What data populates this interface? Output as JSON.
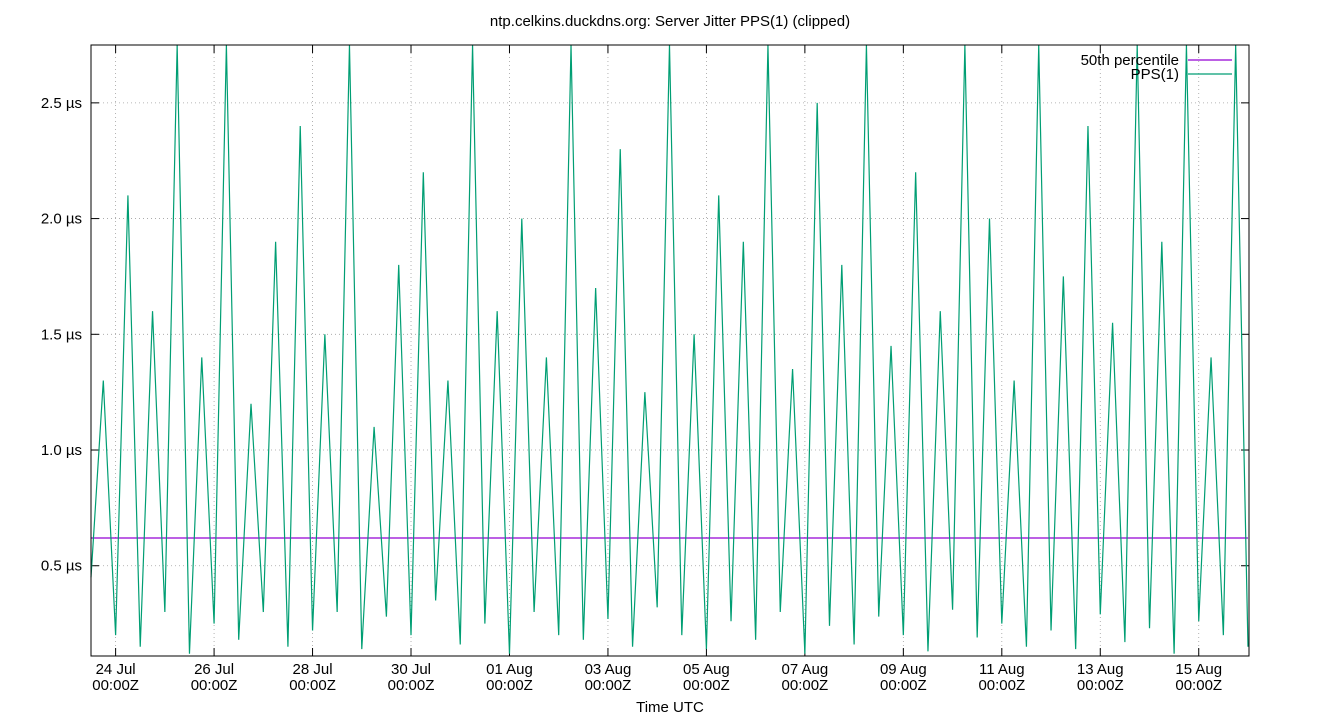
{
  "chart_data": {
    "type": "line",
    "title": "ntp.celkins.duckdns.org: Server Jitter PPS(1) (clipped)",
    "x_label": "Time UTC",
    "grid": true,
    "legend": "top-right",
    "xlim": [
      "23 Jul 12:00Z",
      "16 Aug 00:30Z"
    ],
    "xticks": [
      {
        "value": "24 Jul 00:00Z",
        "label": "24 Jul\n00:00Z"
      },
      {
        "value": "26 Jul 00:00Z",
        "label": "26 Jul\n00:00Z"
      },
      {
        "value": "28 Jul 00:00Z",
        "label": "28 Jul\n00:00Z"
      },
      {
        "value": "30 Jul 00:00Z",
        "label": "30 Jul\n00:00Z"
      },
      {
        "value": "01 Aug 00:00Z",
        "label": "01 Aug\n00:00Z"
      },
      {
        "value": "03 Aug 00:00Z",
        "label": "03 Aug\n00:00Z"
      },
      {
        "value": "05 Aug 00:00Z",
        "label": "05 Aug\n00:00Z"
      },
      {
        "value": "07 Aug 00:00Z",
        "label": "07 Aug\n00:00Z"
      },
      {
        "value": "09 Aug 00:00Z",
        "label": "09 Aug\n00:00Z"
      },
      {
        "value": "11 Aug 00:00Z",
        "label": "11 Aug\n00:00Z"
      },
      {
        "value": "13 Aug 00:00Z",
        "label": "13 Aug\n00:00Z"
      },
      {
        "value": "15 Aug 00:00Z",
        "label": "15 Aug\n00:00Z"
      }
    ],
    "ylim": [
      0.11,
      2.75
    ],
    "yticks": [
      {
        "value": 0.5,
        "label": "0.5 µs"
      },
      {
        "value": 1.0,
        "label": "1.0 µs"
      },
      {
        "value": 1.5,
        "label": "1.5 µs"
      },
      {
        "value": 2.0,
        "label": "2.0 µs"
      },
      {
        "value": 2.5,
        "label": "2.5 µs"
      }
    ],
    "series": [
      {
        "name": "50th percentile",
        "color": "#9400d3",
        "x": [
          "23 Jul 12:00Z",
          "16 Aug 00:00Z"
        ],
        "values": [
          0.62,
          0.62
        ]
      },
      {
        "name": "PPS(1)",
        "color": "#009e73",
        "x": [
          "23 Jul 12:00Z",
          "23 Jul 18:00Z",
          "24 Jul 00:00Z",
          "24 Jul 06:00Z",
          "24 Jul 12:00Z",
          "24 Jul 18:00Z",
          "25 Jul 00:00Z",
          "25 Jul 06:00Z",
          "25 Jul 12:00Z",
          "25 Jul 18:00Z",
          "26 Jul 00:00Z",
          "26 Jul 06:00Z",
          "26 Jul 12:00Z",
          "26 Jul 18:00Z",
          "27 Jul 00:00Z",
          "27 Jul 06:00Z",
          "27 Jul 12:00Z",
          "27 Jul 18:00Z",
          "28 Jul 00:00Z",
          "28 Jul 06:00Z",
          "28 Jul 12:00Z",
          "28 Jul 18:00Z",
          "29 Jul 00:00Z",
          "29 Jul 06:00Z",
          "29 Jul 12:00Z",
          "29 Jul 18:00Z",
          "30 Jul 00:00Z",
          "30 Jul 06:00Z",
          "30 Jul 12:00Z",
          "30 Jul 18:00Z",
          "31 Jul 00:00Z",
          "31 Jul 06:00Z",
          "31 Jul 12:00Z",
          "31 Jul 18:00Z",
          "01 Aug 00:00Z",
          "01 Aug 06:00Z",
          "01 Aug 12:00Z",
          "01 Aug 18:00Z",
          "02 Aug 00:00Z",
          "02 Aug 06:00Z",
          "02 Aug 12:00Z",
          "02 Aug 18:00Z",
          "03 Aug 00:00Z",
          "03 Aug 06:00Z",
          "03 Aug 12:00Z",
          "03 Aug 18:00Z",
          "04 Aug 00:00Z",
          "04 Aug 06:00Z",
          "04 Aug 12:00Z",
          "04 Aug 18:00Z",
          "05 Aug 00:00Z",
          "05 Aug 06:00Z",
          "05 Aug 12:00Z",
          "05 Aug 18:00Z",
          "06 Aug 00:00Z",
          "06 Aug 06:00Z",
          "06 Aug 12:00Z",
          "06 Aug 18:00Z",
          "07 Aug 00:00Z",
          "07 Aug 06:00Z",
          "07 Aug 12:00Z",
          "07 Aug 18:00Z",
          "08 Aug 00:00Z",
          "08 Aug 06:00Z",
          "08 Aug 12:00Z",
          "08 Aug 18:00Z",
          "09 Aug 00:00Z",
          "09 Aug 06:00Z",
          "09 Aug 12:00Z",
          "09 Aug 18:00Z",
          "10 Aug 00:00Z",
          "10 Aug 06:00Z",
          "10 Aug 12:00Z",
          "10 Aug 18:00Z",
          "11 Aug 00:00Z",
          "11 Aug 06:00Z",
          "11 Aug 12:00Z",
          "11 Aug 18:00Z",
          "12 Aug 00:00Z",
          "12 Aug 06:00Z",
          "12 Aug 12:00Z",
          "12 Aug 18:00Z",
          "13 Aug 00:00Z",
          "13 Aug 06:00Z",
          "13 Aug 12:00Z",
          "13 Aug 18:00Z",
          "14 Aug 00:00Z",
          "14 Aug 06:00Z",
          "14 Aug 12:00Z",
          "14 Aug 18:00Z",
          "15 Aug 00:00Z",
          "15 Aug 06:00Z",
          "15 Aug 12:00Z",
          "15 Aug 18:00Z",
          "16 Aug 00:00Z"
        ],
        "values": [
          0.45,
          1.3,
          0.2,
          2.1,
          0.15,
          1.6,
          0.3,
          2.75,
          0.12,
          1.4,
          0.25,
          2.75,
          0.18,
          1.2,
          0.3,
          1.9,
          0.15,
          2.4,
          0.22,
          1.5,
          0.3,
          2.75,
          0.14,
          1.1,
          0.28,
          1.8,
          0.2,
          2.2,
          0.35,
          1.3,
          0.16,
          2.75,
          0.25,
          1.6,
          0.12,
          2.0,
          0.3,
          1.4,
          0.2,
          2.75,
          0.18,
          1.7,
          0.27,
          2.3,
          0.15,
          1.25,
          0.32,
          2.75,
          0.2,
          1.5,
          0.14,
          2.1,
          0.26,
          1.9,
          0.18,
          2.75,
          0.3,
          1.35,
          0.12,
          2.5,
          0.24,
          1.8,
          0.16,
          2.75,
          0.28,
          1.45,
          0.2,
          2.2,
          0.13,
          1.6,
          0.31,
          2.75,
          0.19,
          2.0,
          0.25,
          1.3,
          0.15,
          2.75,
          0.22,
          1.75,
          0.14,
          2.4,
          0.29,
          1.55,
          0.17,
          2.75,
          0.23,
          1.9,
          0.12,
          2.75,
          0.26,
          1.4,
          0.2,
          2.75,
          0.15
        ]
      }
    ]
  }
}
